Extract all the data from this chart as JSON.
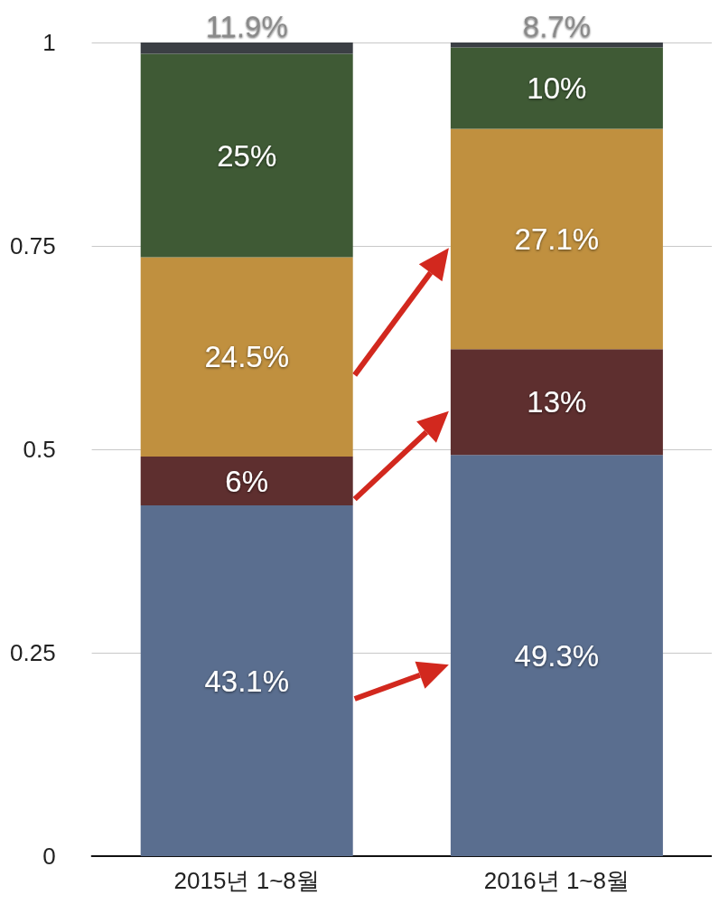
{
  "chart_data": {
    "type": "bar",
    "stacked": true,
    "categories": [
      "2015년 1~8월",
      "2016년 1~8월"
    ],
    "ylim": [
      0,
      1
    ],
    "yticks": [
      0,
      0.25,
      0.5,
      0.75,
      1
    ],
    "grid": "y",
    "series": [
      {
        "color": "#5a6e8f",
        "values": [
          0.431,
          0.493
        ],
        "value_labels": [
          "43.1%",
          "49.3%"
        ]
      },
      {
        "color": "#5e2f2f",
        "values": [
          0.06,
          0.13
        ],
        "value_labels": [
          "6%",
          "13%"
        ]
      },
      {
        "color": "#c0903f",
        "values": [
          0.245,
          0.271
        ],
        "value_labels": [
          "24.5%",
          "27.1%"
        ]
      },
      {
        "color": "#3f5a35",
        "values": [
          0.25,
          0.1
        ],
        "value_labels": [
          "25%",
          "10%"
        ]
      },
      {
        "color": "#3b3f44",
        "values": [
          0.014,
          0.006
        ]
      }
    ],
    "annotations": [
      {
        "text": "11.9%",
        "x": "2015년 1~8월",
        "y": 1
      },
      {
        "text": "8.7%",
        "x": "2016년 1~8월",
        "y": 1
      }
    ]
  }
}
